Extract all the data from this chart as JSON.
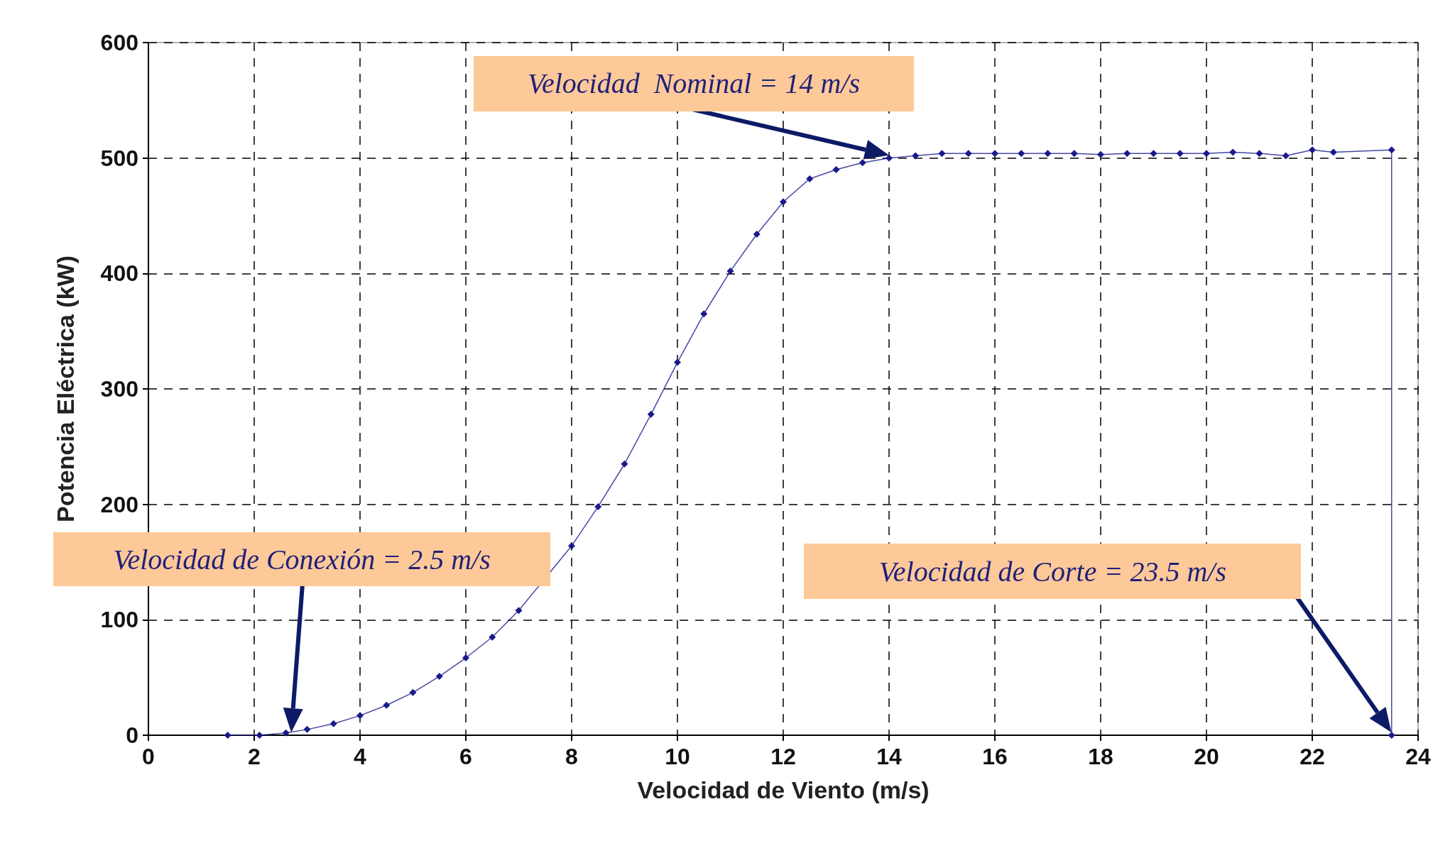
{
  "chart_data": {
    "type": "line",
    "xlabel": "Velocidad de Viento (m/s)",
    "ylabel": "Potencia Eléctrica (kW)",
    "x": [
      1.5,
      2.1,
      2.6,
      3,
      3.5,
      4,
      4.5,
      5,
      5.5,
      6,
      6.5,
      7,
      8,
      8.5,
      9,
      9.5,
      10,
      10.5,
      11,
      11.5,
      12,
      12.5,
      13,
      13.5,
      14,
      14.5,
      15,
      15.5,
      16,
      16.5,
      17,
      17.5,
      18,
      18.5,
      19,
      19.5,
      20,
      20.5,
      21,
      21.5,
      22,
      22.4,
      23.5,
      23.5
    ],
    "series": [
      {
        "color": "#1a1a8c",
        "values": [
          0,
          0,
          2,
          5,
          10,
          17,
          26,
          37,
          51,
          67,
          85,
          108,
          164,
          198,
          235,
          278,
          323,
          365,
          402,
          434,
          462,
          482,
          490,
          496,
          500,
          502,
          504,
          504,
          504,
          504,
          504,
          504,
          503,
          504,
          504,
          504,
          504,
          505,
          504,
          502,
          507,
          505,
          507,
          0
        ]
      }
    ],
    "xlim": [
      0,
      24
    ],
    "xticks": [
      0,
      2,
      4,
      6,
      8,
      10,
      12,
      14,
      16,
      18,
      20,
      22,
      24
    ],
    "ylim": [
      0,
      600
    ],
    "yticks": [
      0,
      100,
      200,
      300,
      400,
      500,
      600
    ],
    "grid": true,
    "marker": "diamond",
    "line_style": "solid",
    "annotations": [
      {
        "text": "Velocidad  Nominal = 14 m/s",
        "x": 14,
        "y": 500
      },
      "Velocidad de Conexión = 2.5 m/s",
      "Velocidad de Corte = 23.5 m/s"
    ]
  }
}
